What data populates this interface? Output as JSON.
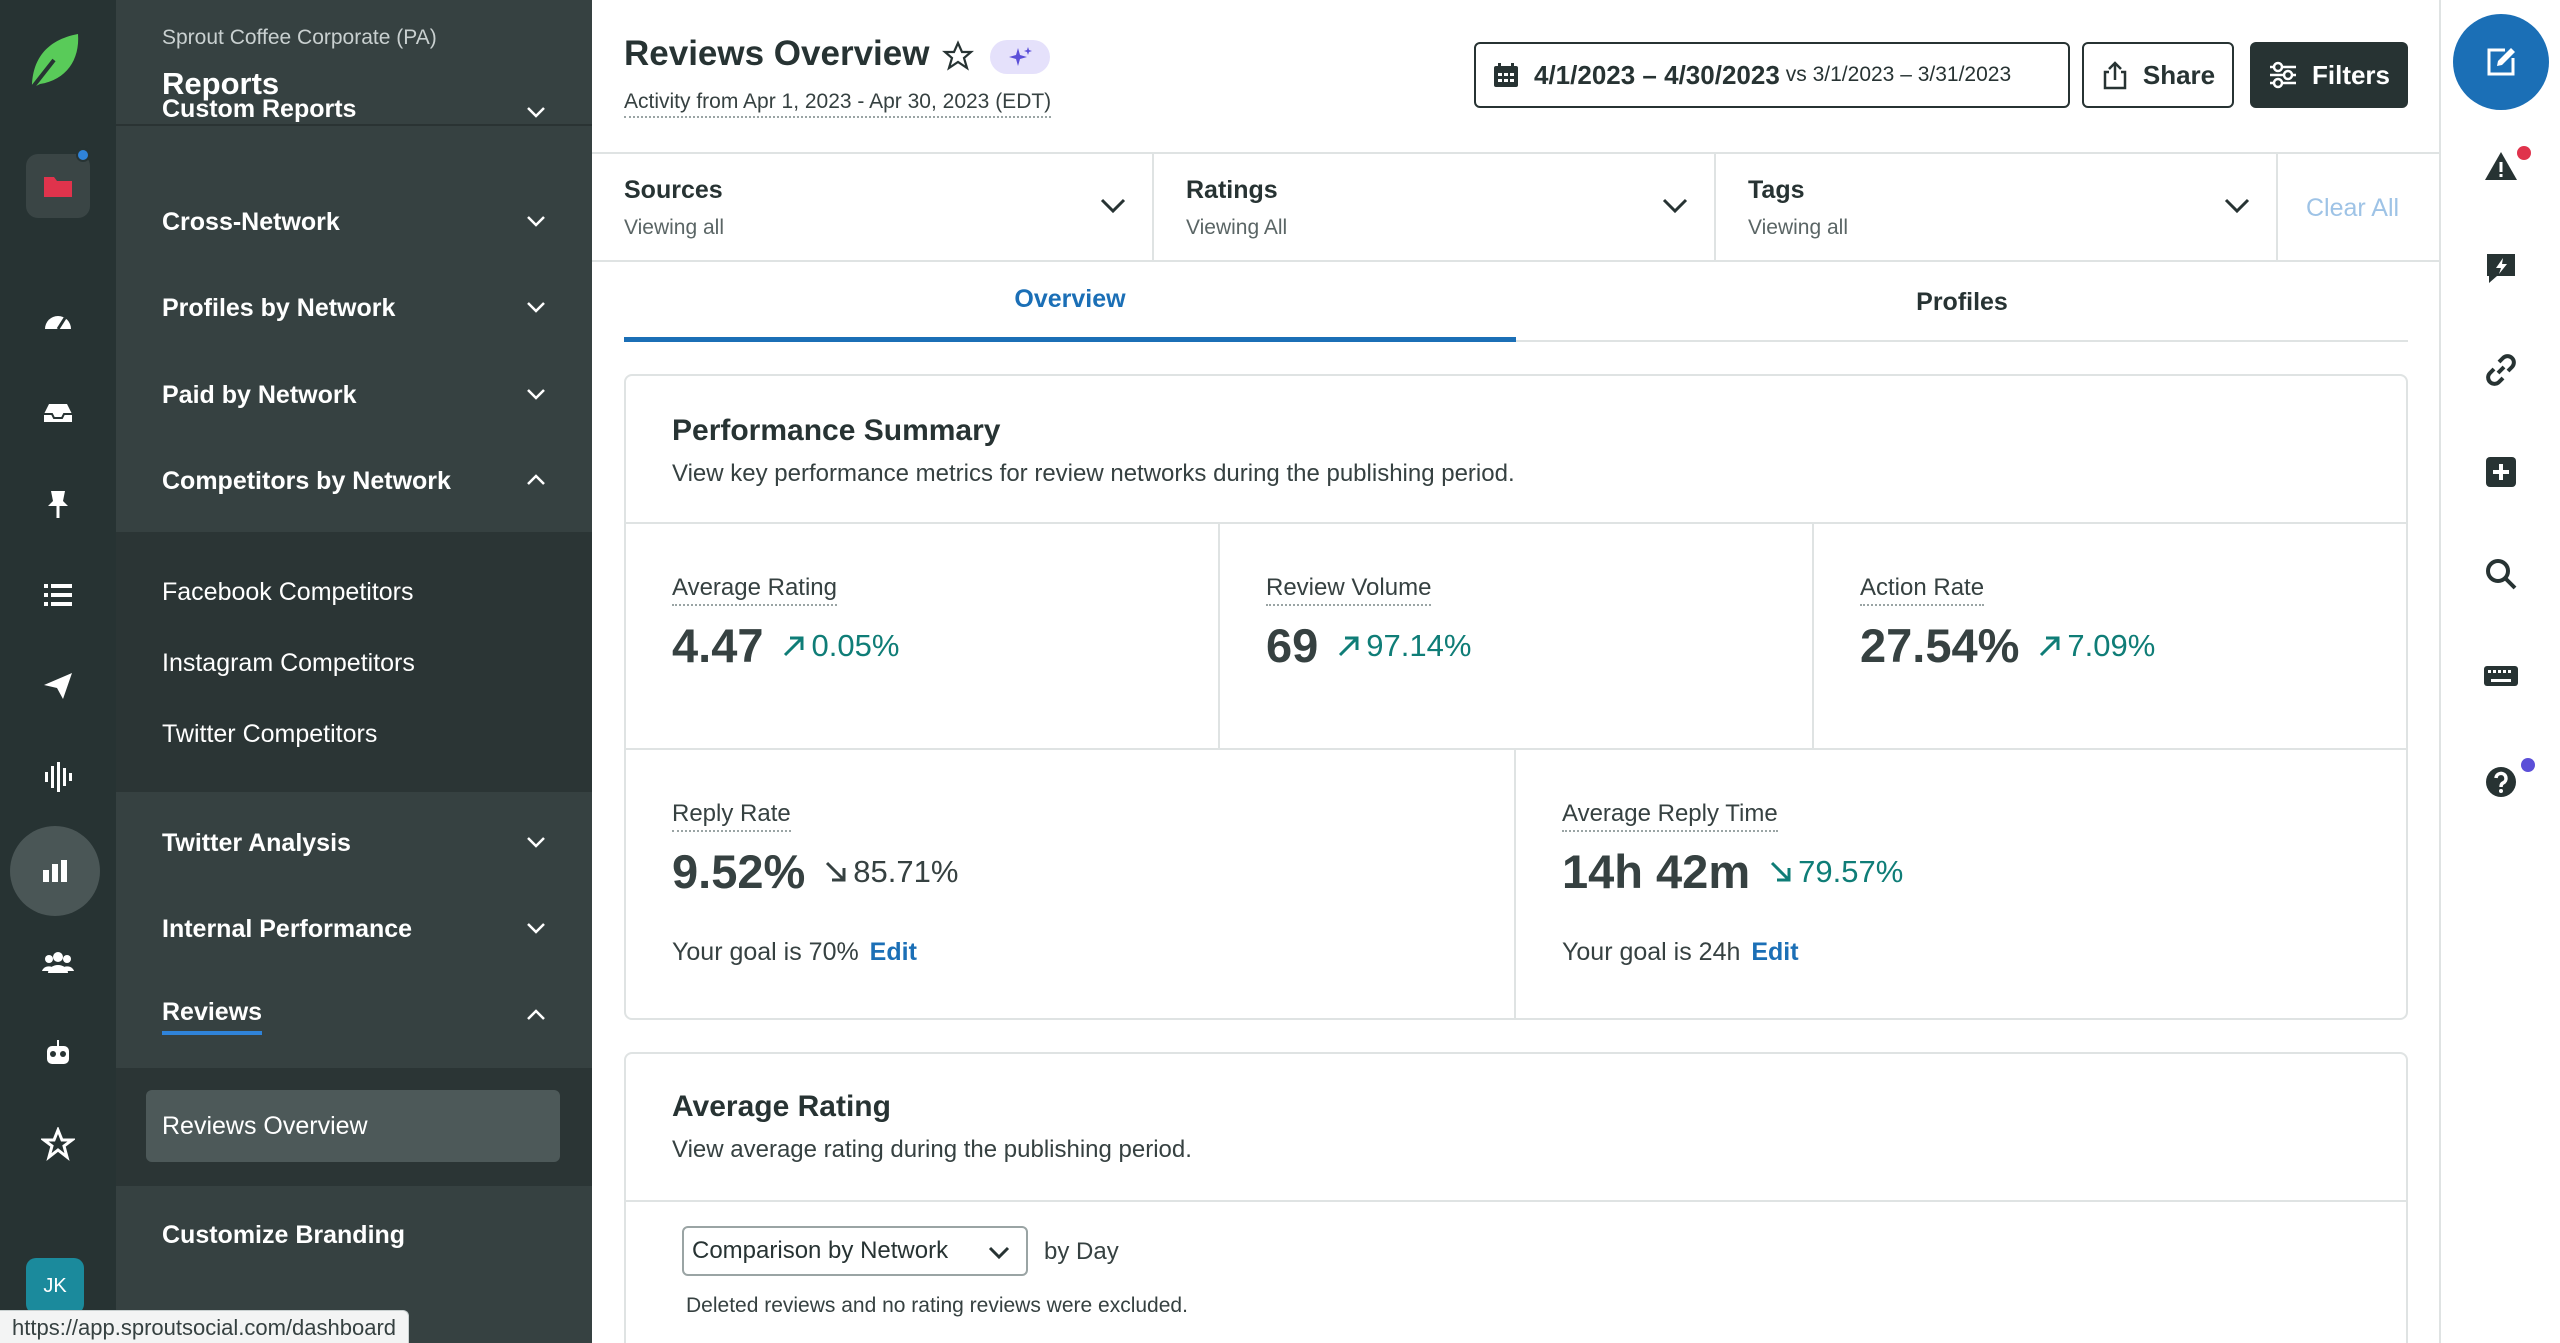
{
  "nav": {
    "org": "Sprout Coffee Corporate (PA)",
    "title": "Reports",
    "items": [
      {
        "label": "Custom Reports"
      },
      {
        "label": "Cross-Network"
      },
      {
        "label": "Profiles by Network"
      },
      {
        "label": "Paid by Network"
      },
      {
        "label": "Competitors by Network"
      },
      {
        "label": "Twitter Analysis"
      },
      {
        "label": "Internal Performance"
      },
      {
        "label": "Reviews"
      },
      {
        "label": "Customize Branding"
      }
    ],
    "competitors_sub": [
      "Facebook Competitors",
      "Instagram Competitors",
      "Twitter Competitors"
    ],
    "reviews_sub": [
      "Reviews Overview"
    ]
  },
  "user": {
    "initials": "JK"
  },
  "status_url": "https://app.sproutsocial.com/dashboard",
  "header": {
    "title": "Reviews Overview",
    "activity": "Activity from Apr 1, 2023 - Apr 30, 2023 (EDT)",
    "date_range": "4/1/2023 – 4/30/2023",
    "compare_range": "vs 3/1/2023 – 3/31/2023",
    "share_label": "Share",
    "filters_label": "Filters"
  },
  "filters": [
    {
      "title": "Sources",
      "value": "Viewing all"
    },
    {
      "title": "Ratings",
      "value": "Viewing All"
    },
    {
      "title": "Tags",
      "value": "Viewing all"
    }
  ],
  "clear_all": "Clear All",
  "tabs": [
    {
      "label": "Overview"
    },
    {
      "label": "Profiles"
    }
  ],
  "performance": {
    "title": "Performance Summary",
    "desc": "View key performance metrics for review networks during the publishing period.",
    "metrics": [
      {
        "label": "Average Rating",
        "value": "4.47",
        "delta": "0.05%",
        "direction": "up"
      },
      {
        "label": "Review Volume",
        "value": "69",
        "delta": "97.14%",
        "direction": "up"
      },
      {
        "label": "Action Rate",
        "value": "27.54%",
        "delta": "7.09%",
        "direction": "up"
      },
      {
        "label": "Reply Rate",
        "value": "9.52%",
        "delta": "85.71%",
        "direction": "down",
        "goal": "Your goal is 70%",
        "edit": "Edit"
      },
      {
        "label": "Average Reply Time",
        "value": "14h 42m",
        "delta": "79.57%",
        "direction": "down",
        "goal": "Your goal is 24h",
        "edit": "Edit"
      }
    ]
  },
  "avg_rating": {
    "title": "Average Rating",
    "desc": "View average rating during the publishing period.",
    "select_value": "Comparison by Network",
    "by_day": "by Day",
    "note": "Deleted reviews and no rating reviews were excluded."
  },
  "colors": {
    "brand_dark": "#273333",
    "accent_blue": "#1b6fb6",
    "positive": "#0f7d77",
    "alert_red": "#e0334c",
    "logo_green": "#59cb59"
  }
}
